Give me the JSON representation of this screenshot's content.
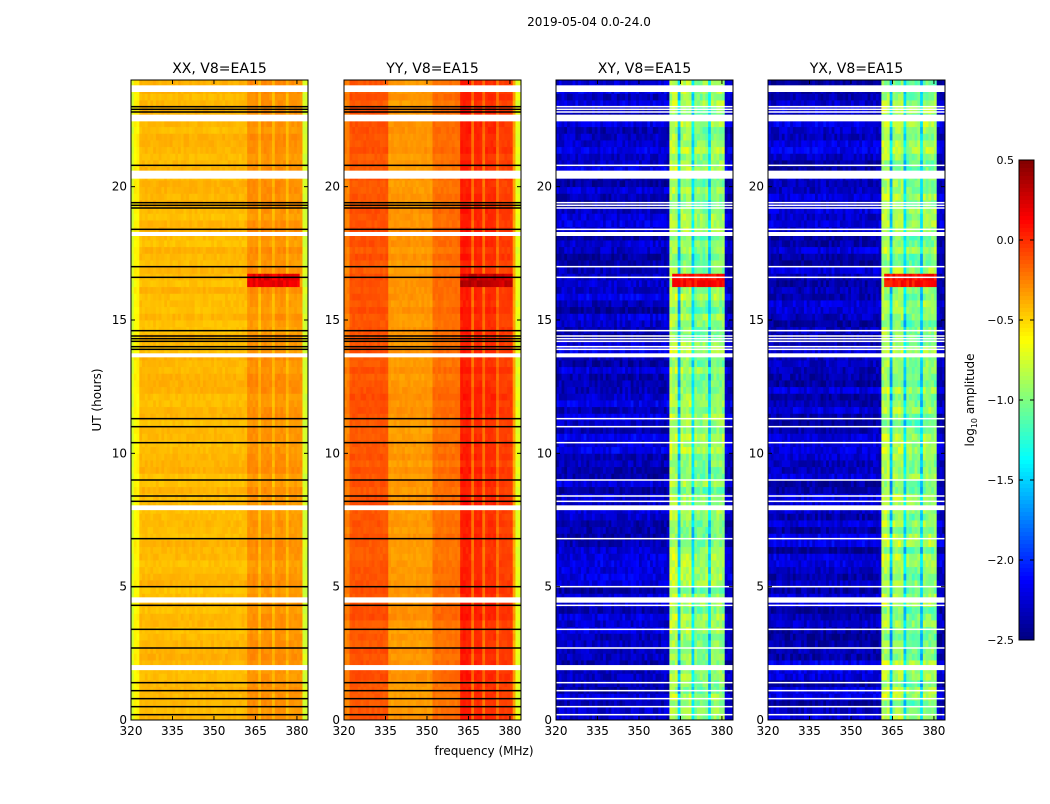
{
  "chart_data": {
    "type": "heatmap",
    "suptitle": "2019-05-04 0.0-24.0",
    "xlabel": "frequency (MHz)",
    "ylabel": "UT (hours)",
    "xlim": [
      320,
      384
    ],
    "ylim": [
      0,
      24
    ],
    "xticks": [
      "320",
      "335",
      "350",
      "365",
      "380"
    ],
    "xtick_values": [
      320,
      335,
      350,
      365,
      380
    ],
    "yticks": [
      "0",
      "5",
      "10",
      "15",
      "20"
    ],
    "ytick_values": [
      0,
      5,
      10,
      15,
      20
    ],
    "colormap": "jet",
    "colorbar": {
      "label_main": "log",
      "label_sub": "10",
      "label_rest": " amplitude",
      "range": [
        -2.5,
        0.5
      ],
      "ticks": [
        "0.5",
        "0.0",
        "−0.5",
        "−1.0",
        "−1.5",
        "−2.0",
        "−2.5"
      ],
      "tick_values": [
        0.5,
        0.0,
        -0.5,
        -1.0,
        -1.5,
        -2.0,
        -2.5
      ]
    },
    "flag_gaps_hours": [
      [
        23.55,
        23.8
      ],
      [
        22.45,
        22.7
      ],
      [
        20.3,
        20.6
      ],
      [
        18.15,
        18.3
      ],
      [
        13.6,
        13.75
      ],
      [
        7.87,
        8.05
      ],
      [
        4.4,
        4.6
      ],
      [
        1.87,
        2.06
      ]
    ],
    "flag_lines_hours": [
      23.0,
      22.9,
      22.8,
      20.8,
      19.4,
      19.3,
      19.2,
      18.4,
      17.0,
      16.6,
      14.6,
      14.4,
      14.3,
      14.2,
      14.0,
      13.9,
      11.3,
      11.0,
      10.4,
      9.0,
      8.4,
      8.2,
      6.8,
      5.0,
      4.3,
      3.4,
      2.7,
      1.4,
      1.1,
      0.8,
      0.5,
      0.2
    ],
    "rfi_burst": {
      "hours": [
        16.2,
        16.7
      ],
      "freq": [
        362,
        381
      ]
    },
    "panels": [
      {
        "title": "XX, V8=EA15",
        "burst_value": 0.2,
        "noise": 0.06,
        "line_color": "#000000",
        "profile": [
          [
            320,
            321,
            -0.75
          ],
          [
            321,
            323,
            -0.6
          ],
          [
            323,
            362,
            -0.42
          ],
          [
            362,
            366,
            -0.3
          ],
          [
            366,
            367,
            -0.42
          ],
          [
            367,
            371,
            -0.3
          ],
          [
            371,
            372,
            -0.42
          ],
          [
            372,
            376,
            -0.3
          ],
          [
            376,
            377,
            -0.42
          ],
          [
            377,
            382,
            -0.32
          ],
          [
            382,
            384,
            -0.75
          ]
        ]
      },
      {
        "title": "YY, V8=EA15",
        "burst_value": 0.3,
        "noise": 0.06,
        "line_color": "#000000",
        "profile": [
          [
            320,
            322,
            -0.25
          ],
          [
            322,
            336,
            -0.12
          ],
          [
            336,
            352,
            -0.32
          ],
          [
            352,
            362,
            -0.2
          ],
          [
            362,
            366,
            0.05
          ],
          [
            366,
            367,
            -0.2
          ],
          [
            367,
            370,
            0.02
          ],
          [
            370,
            371,
            -0.2
          ],
          [
            371,
            375,
            0.0
          ],
          [
            375,
            376,
            -0.2
          ],
          [
            376,
            381,
            -0.05
          ],
          [
            381,
            382,
            -0.35
          ],
          [
            382,
            384,
            -0.7
          ]
        ]
      },
      {
        "title": "XY, V8=EA15",
        "burst_value": 0.1,
        "noise": 0.25,
        "line_color": "#ffffff",
        "profile": [
          [
            320,
            361,
            -2.3
          ],
          [
            361,
            364,
            -0.85
          ],
          [
            364,
            365.5,
            -1.55
          ],
          [
            365.5,
            369,
            -0.9
          ],
          [
            369,
            370.5,
            -1.45
          ],
          [
            370.5,
            375,
            -1.0
          ],
          [
            375,
            376.5,
            -1.5
          ],
          [
            376.5,
            381,
            -0.95
          ],
          [
            381,
            384,
            -2.3
          ]
        ]
      },
      {
        "title": "YX, V8=EA15",
        "burst_value": 0.1,
        "noise": 0.25,
        "line_color": "#ffffff",
        "profile": [
          [
            320,
            361,
            -2.3
          ],
          [
            361,
            364,
            -0.85
          ],
          [
            364,
            365.5,
            -1.55
          ],
          [
            365.5,
            369,
            -0.9
          ],
          [
            369,
            370.5,
            -1.45
          ],
          [
            370.5,
            375,
            -1.0
          ],
          [
            375,
            376.5,
            -1.5
          ],
          [
            376.5,
            381,
            -0.95
          ],
          [
            381,
            384,
            -2.3
          ]
        ]
      }
    ]
  }
}
